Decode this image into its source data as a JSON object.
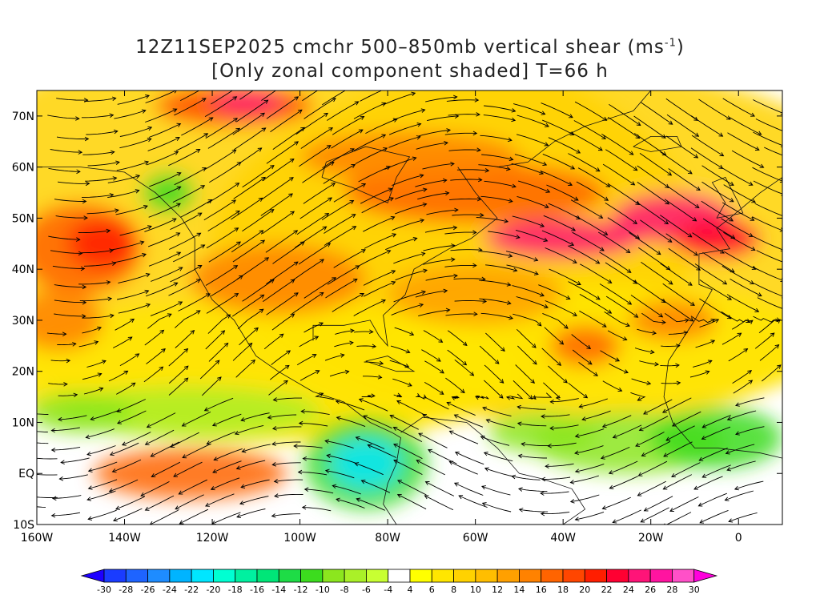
{
  "title": {
    "line1_prefix": "12Z11SEP2025 cmchr 500–850mb vertical shear (ms",
    "line1_sup": "-1",
    "line1_suffix": ")",
    "line2": "[Only zonal component shaded] T=66 h"
  },
  "map": {
    "lon_range": [
      -160,
      10
    ],
    "lat_range": [
      -10,
      75
    ],
    "lon_ticks": [
      "160W",
      "140W",
      "120W",
      "100W",
      "80W",
      "60W",
      "40W",
      "20W",
      "0"
    ],
    "lat_ticks": [
      "10S",
      "EQ",
      "10N",
      "20N",
      "30N",
      "40N",
      "50N",
      "60N",
      "70N"
    ],
    "shaded_variable": "zonal component of 500-850mb shear",
    "streamlines": true
  },
  "colorbar": {
    "labels": [
      "-30",
      "-28",
      "-26",
      "-24",
      "-22",
      "-20",
      "-18",
      "-16",
      "-14",
      "-12",
      "-10",
      "-8",
      "-6",
      "-4",
      "4",
      "6",
      "8",
      "10",
      "12",
      "14",
      "16",
      "18",
      "20",
      "22",
      "24",
      "26",
      "28",
      "30"
    ],
    "colors": [
      "#1e00ff",
      "#1a3cff",
      "#1e64ff",
      "#1e8cff",
      "#00b4ff",
      "#00e6ff",
      "#00ffd2",
      "#00f0a0",
      "#00e678",
      "#1edc46",
      "#3cdc1e",
      "#8ce61e",
      "#aaf028",
      "#c8ff32",
      "#ffffff",
      "#ffff00",
      "#ffe600",
      "#ffd200",
      "#ffbe00",
      "#ffa000",
      "#ff8200",
      "#ff6400",
      "#ff4600",
      "#ff1e00",
      "#ff0032",
      "#ff1478",
      "#ff14a0",
      "#ff50c8",
      "#ff00dc"
    ]
  }
}
